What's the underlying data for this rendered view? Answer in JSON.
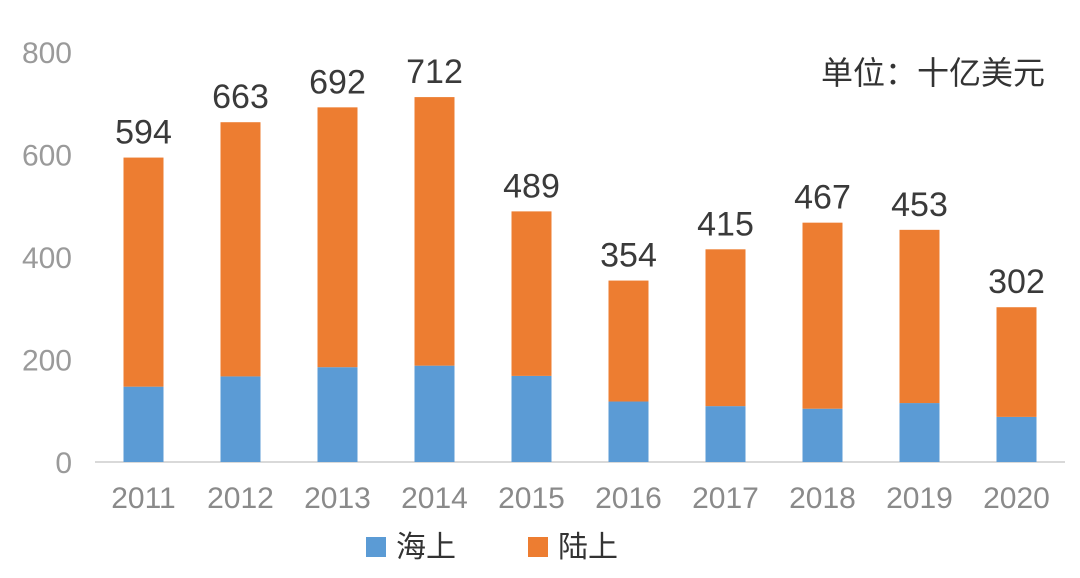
{
  "chart_data": {
    "type": "bar",
    "stacked": true,
    "unit_note": "单位：十亿美元",
    "categories": [
      "2011",
      "2012",
      "2013",
      "2014",
      "2015",
      "2016",
      "2017",
      "2018",
      "2019",
      "2020"
    ],
    "series": [
      {
        "name": "海上",
        "color": "#5b9bd5",
        "values": [
          147,
          167,
          185,
          188,
          168,
          118,
          109,
          104,
          115,
          88
        ]
      },
      {
        "name": "陆上",
        "color": "#ed7d31",
        "values": [
          447,
          496,
          507,
          524,
          321,
          236,
          306,
          363,
          338,
          214
        ]
      }
    ],
    "totals": [
      594,
      663,
      692,
      712,
      489,
      354,
      415,
      467,
      453,
      302
    ],
    "yticks": [
      0,
      200,
      400,
      600,
      800
    ],
    "ylim": [
      0,
      800
    ],
    "legend_position": "bottom",
    "grid": false
  }
}
